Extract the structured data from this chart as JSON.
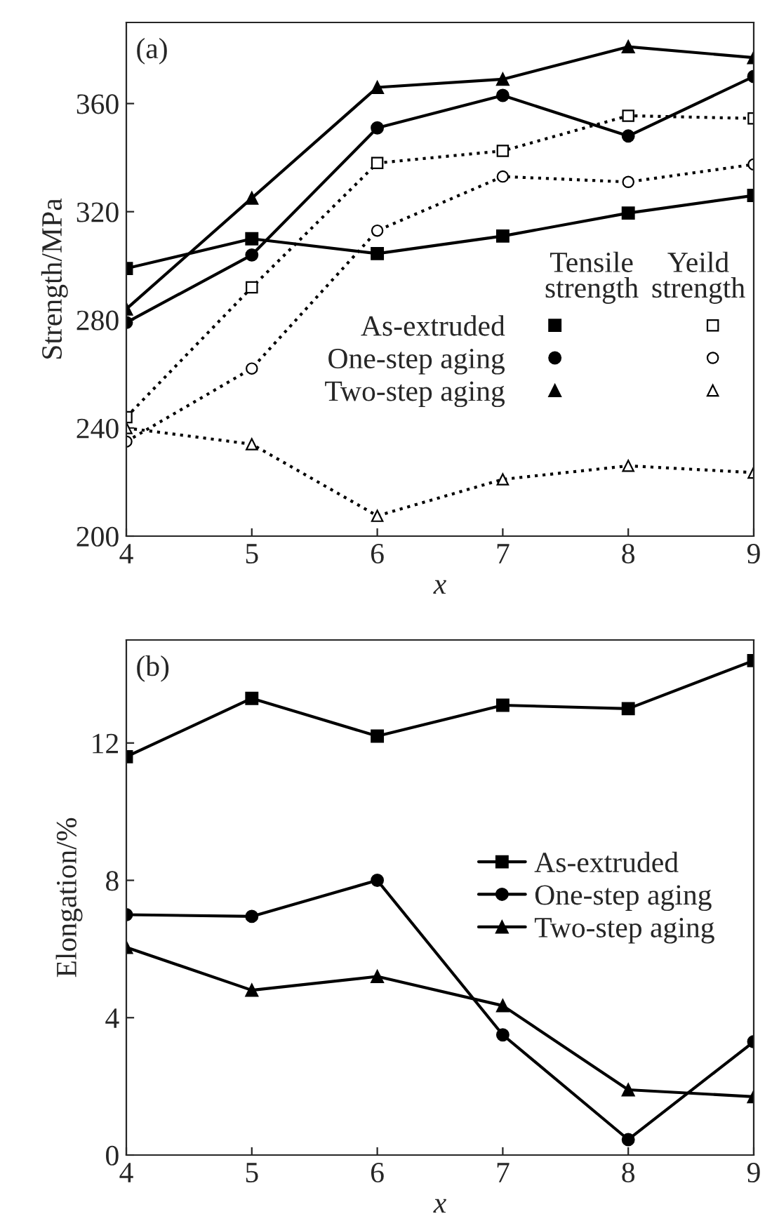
{
  "chart_data": [
    {
      "type": "line",
      "title": "(a)",
      "xlabel": "x",
      "ylabel": "Strength/MPa",
      "x": [
        4,
        5,
        6,
        7,
        8,
        9
      ],
      "xlim": [
        4,
        9
      ],
      "xticks": [
        4,
        5,
        6,
        7,
        8,
        9
      ],
      "ylim": [
        200,
        390
      ],
      "yticks": [
        200,
        240,
        280,
        320,
        360
      ],
      "grid": false,
      "legend": "bottom",
      "annotations": [
        "Tensile\nstrength",
        "Yeild\nstrength"
      ],
      "series": [
        {
          "name": "As-extruded",
          "color": "#000000",
          "marker": "square",
          "line_style": "solid",
          "values": [
            299,
            310,
            304.5,
            311,
            319.5,
            326
          ]
        },
        {
          "name": "One-step aging",
          "color": "#000000",
          "marker": "circle",
          "line_style": "solid",
          "values": [
            279,
            304,
            351,
            363,
            348,
            370
          ]
        },
        {
          "name": "Two-step aging",
          "color": "#000000",
          "marker": "triangle",
          "line_style": "solid",
          "values": [
            284,
            325,
            366,
            369,
            381,
            377
          ]
        },
        {
          "color": "#000000",
          "marker": "square",
          "line_style": "dotted",
          "values": [
            244,
            292,
            338,
            342.5,
            355.5,
            354.5
          ]
        },
        {
          "color": "#000000",
          "marker": "circle",
          "line_style": "dotted",
          "values": [
            235,
            262,
            313,
            333,
            331,
            337.5
          ]
        },
        {
          "color": "#000000",
          "marker": "triangle",
          "line_style": "dotted",
          "values": [
            240,
            234,
            207.5,
            221,
            226,
            223.5
          ]
        }
      ]
    },
    {
      "type": "line",
      "title": "(b)",
      "xlabel": "x",
      "ylabel": "Elongation/%",
      "x": [
        4,
        5,
        6,
        7,
        8,
        9
      ],
      "xlim": [
        4,
        9
      ],
      "xticks": [
        4,
        5,
        6,
        7,
        8,
        9
      ],
      "ylim": [
        0,
        15
      ],
      "yticks": [
        0,
        4,
        8,
        12
      ],
      "grid": false,
      "legend": "right",
      "series": [
        {
          "name": "As-extruded",
          "color": "#000000",
          "marker": "square",
          "line_style": "solid",
          "values": [
            11.6,
            13.3,
            12.2,
            13.1,
            13.0,
            14.4
          ]
        },
        {
          "name": "One-step aging",
          "color": "#000000",
          "marker": "circle",
          "line_style": "solid",
          "values": [
            7.0,
            6.95,
            8.0,
            3.5,
            0.45,
            3.3
          ]
        },
        {
          "name": "Two-step aging",
          "color": "#000000",
          "marker": "triangle",
          "line_style": "solid",
          "values": [
            6.05,
            4.8,
            5.2,
            4.35,
            1.9,
            1.7
          ]
        }
      ]
    }
  ]
}
